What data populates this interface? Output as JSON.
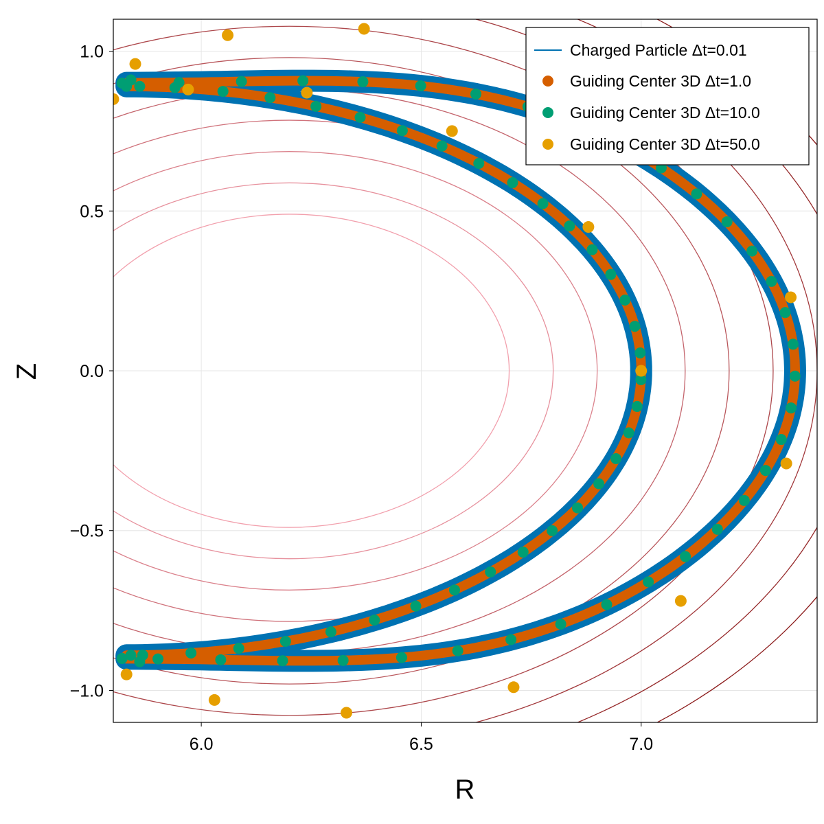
{
  "chart_data": {
    "type": "scatter",
    "xlabel": "R",
    "ylabel": "Z",
    "xlim": [
      5.8,
      7.4
    ],
    "ylim": [
      -1.1,
      1.1
    ],
    "x_ticks": [
      6.0,
      6.5,
      7.0
    ],
    "x_tick_labels": [
      "6.0",
      "6.5",
      "7.0"
    ],
    "y_ticks": [
      -1.0,
      -0.5,
      0.0,
      0.5,
      1.0
    ],
    "y_tick_labels": [
      "−1.0",
      "−0.5",
      "0.0",
      "0.5",
      "1.0"
    ],
    "grid": true,
    "legend_position": "top-right",
    "contours": {
      "center_r": 6.2,
      "center_z": 0.0,
      "aspect_z_over_r": 0.98,
      "semi_axes_r": [
        0.5,
        0.6,
        0.7,
        0.8,
        0.9,
        1.0,
        1.1,
        1.2,
        1.3,
        1.4
      ],
      "color_start": "#f2a0ad",
      "color_end": "#8b1a1a"
    },
    "orbit": {
      "outer_bulge_r": 7.35,
      "inner_bulge_r": 7.0,
      "outer_tip_z": 1.06,
      "inner_tip_z": 0.89,
      "bounce_r": 5.83,
      "bounce_z": 0.9
    },
    "series": [
      {
        "name": "Charged Particle Δt=0.01",
        "marker": "line",
        "color": "#0072b2"
      },
      {
        "name": "Guiding Center 3D Δt=1.0",
        "marker": "dot",
        "color": "#d55e00"
      },
      {
        "name": "Guiding Center 3D Δt=10.0",
        "marker": "dot",
        "color": "#009e73"
      },
      {
        "name": "Guiding Center 3D Δt=50.0",
        "marker": "dot",
        "color": "#e69f00"
      }
    ],
    "points_dt50": [
      [
        5.8,
        0.85
      ],
      [
        5.85,
        0.96
      ],
      [
        5.97,
        0.88
      ],
      [
        6.06,
        1.05
      ],
      [
        6.24,
        0.87
      ],
      [
        6.37,
        1.07
      ],
      [
        6.57,
        0.75
      ],
      [
        6.88,
        0.45
      ],
      [
        7.34,
        0.23
      ],
      [
        7.0,
        0.0
      ],
      [
        7.33,
        -0.29
      ],
      [
        7.09,
        -0.72
      ],
      [
        6.71,
        -0.99
      ],
      [
        6.33,
        -1.07
      ],
      [
        6.03,
        -1.03
      ],
      [
        5.83,
        -0.95
      ]
    ]
  }
}
